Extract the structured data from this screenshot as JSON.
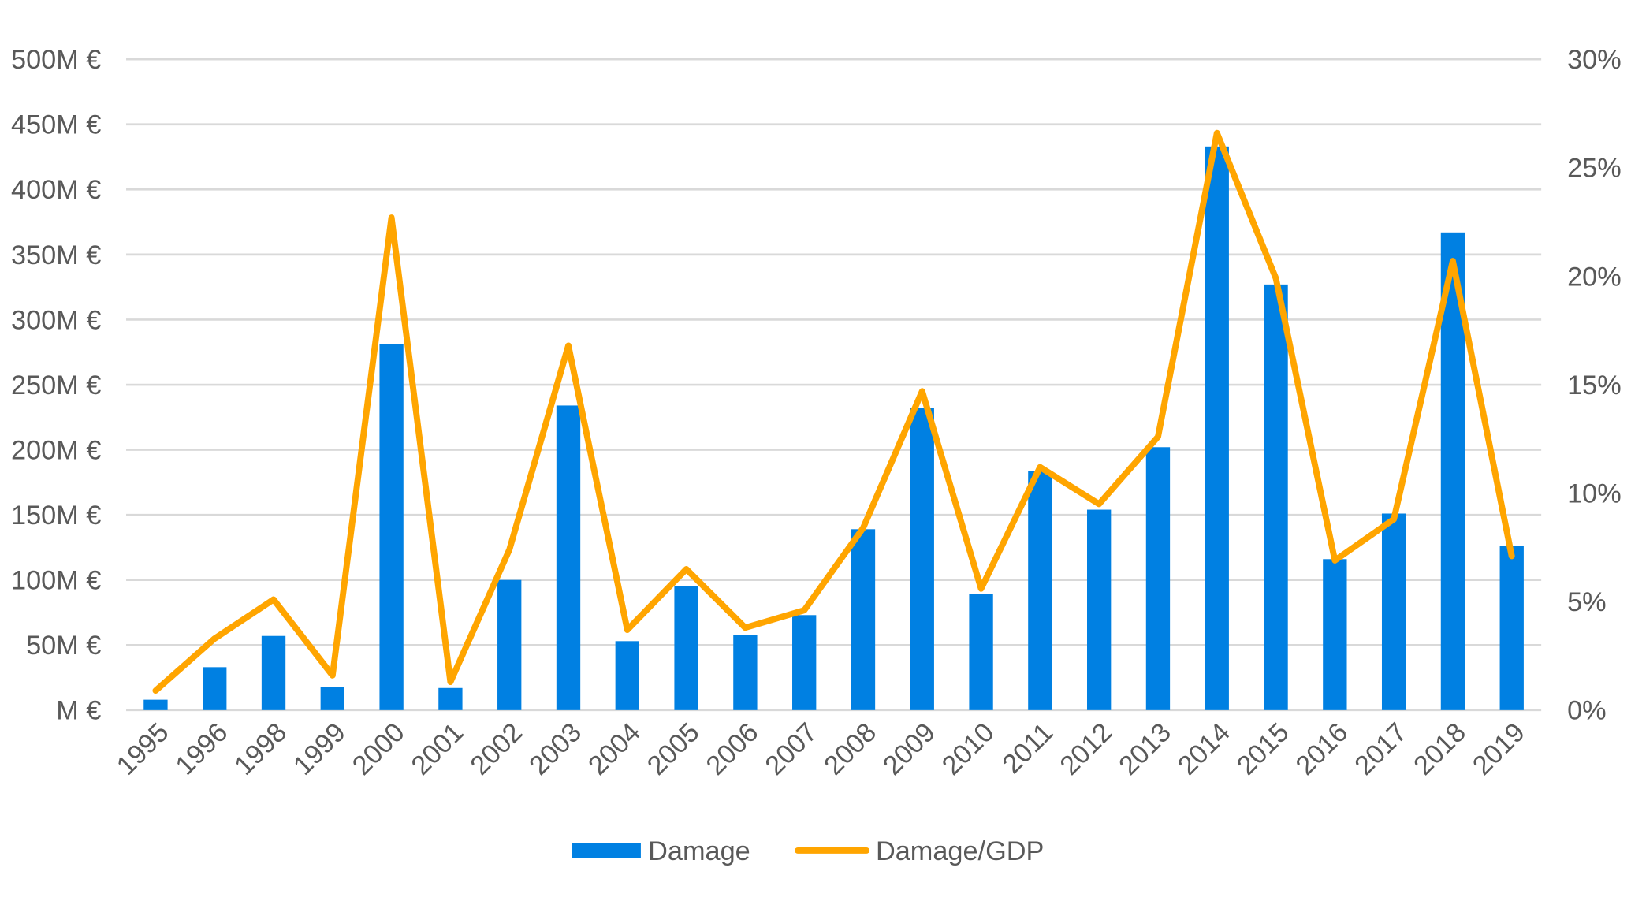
{
  "chart_data": {
    "type": "bar",
    "title": "",
    "categories": [
      "1995",
      "1996",
      "1998",
      "1999",
      "2000",
      "2001",
      "2002",
      "2003",
      "2004",
      "2005",
      "2006",
      "2007",
      "2008",
      "2009",
      "2010",
      "2011",
      "2012",
      "2013",
      "2014",
      "2015",
      "2016",
      "2017",
      "2018",
      "2019"
    ],
    "series": [
      {
        "name": "Damage",
        "type": "bar",
        "axis": "left",
        "unit": "M €",
        "color": "#0080E2",
        "values": [
          8,
          33,
          57,
          18,
          281,
          17,
          100,
          234,
          53,
          95,
          58,
          73,
          139,
          232,
          89,
          184,
          154,
          202,
          433,
          327,
          116,
          151,
          367,
          126
        ]
      },
      {
        "name": "Damage/GDP",
        "type": "line",
        "axis": "right",
        "unit": "%",
        "color": "#FFA500",
        "values": [
          0.9,
          3.3,
          5.1,
          1.6,
          22.7,
          1.3,
          7.4,
          16.8,
          3.7,
          6.5,
          3.8,
          4.6,
          8.4,
          14.7,
          5.6,
          11.2,
          9.5,
          12.6,
          26.6,
          19.9,
          6.9,
          8.8,
          20.7,
          7.1
        ]
      }
    ],
    "y_left": {
      "range": [
        0,
        500
      ],
      "ticks": [
        0,
        50,
        100,
        150,
        200,
        250,
        300,
        350,
        400,
        450,
        500
      ],
      "tick_labels": [
        "M €",
        "50M €",
        "100M €",
        "150M €",
        "200M €",
        "250M €",
        "300M €",
        "350M €",
        "400M €",
        "450M €",
        "500M €"
      ]
    },
    "y_right": {
      "range": [
        0,
        30
      ],
      "ticks": [
        0,
        5,
        10,
        15,
        20,
        25,
        30
      ],
      "tick_labels": [
        "0%",
        "5%",
        "10%",
        "15%",
        "20%",
        "25%",
        "30%"
      ]
    },
    "grid": true,
    "legend": {
      "placement": "bottom",
      "entries": [
        "Damage",
        "Damage/GDP"
      ]
    },
    "grid_color": "#D9D9D9"
  }
}
